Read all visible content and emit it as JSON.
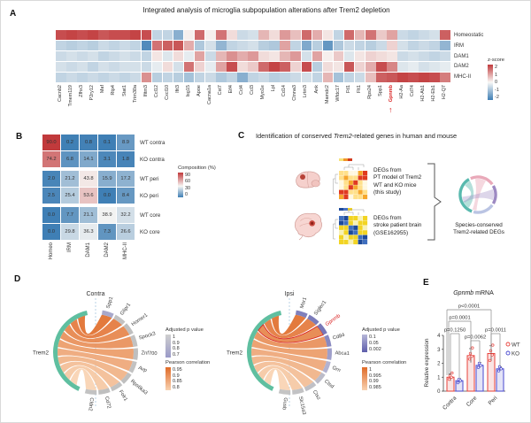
{
  "panels": {
    "A": {
      "letter": "A",
      "title": "Integrated analysis of microglia subpopulation alterations after Trem2 depletion"
    },
    "B": {
      "letter": "B"
    },
    "C": {
      "letter": "C",
      "title_parts": [
        {
          "text": "Identification of conserved ",
          "italic": false
        },
        {
          "text": "Trem2",
          "italic": true
        },
        {
          "text": "-related genes in human and mouse",
          "italic": false
        }
      ],
      "box1_lines": [
        "DEGs from",
        "PT model of Trem2",
        "WT and KO mice",
        "(this study)"
      ],
      "box2_lines": [
        "DEGs from",
        "stroke patient brain",
        "(GSE162955)"
      ],
      "result_lines": [
        "Species-conserved",
        "Trem2-related DEGs"
      ],
      "icons": [
        "mouse-brain-icon",
        "human-brain-icon",
        "clustered-heatmap-icon",
        "chord-diagram-icon"
      ]
    },
    "D": {
      "letter": "D"
    },
    "E": {
      "letter": "E"
    }
  },
  "colors": {
    "heatmap_high": "#c13a3c",
    "heatmap_low": "#3f7fb5",
    "trem2_arc_green": "#5fbfa0",
    "highlight_red": "#d92020",
    "wt_red": "#e8403a",
    "ko_blue": "#4747cf"
  },
  "chart_data": [
    {
      "id": "A",
      "type": "heatmap",
      "title": "Integrated analysis of microglia subpopulation alterations after Trem2 depletion",
      "rows": [
        "Homeostatic",
        "IRM",
        "DAM1",
        "DAM2",
        "MHC-II"
      ],
      "columns": [
        "Cacnb2",
        "Tmem119",
        "Zfhx3",
        "P2ry12",
        "Maf",
        "Rtp4",
        "Stat1",
        "Trim30a",
        "Ifitm3",
        "Ccl12",
        "Cxcl10",
        "Ifit3",
        "Isg15",
        "Apoe",
        "Cacna1a",
        "Cst7",
        "Eif4",
        "Ccl4",
        "Ccl3",
        "Myo1e",
        "Lpl",
        "Cd14",
        "Ctnna3",
        "Lrtm3",
        "Ank",
        "Mamdc2",
        "Wfdc17",
        "Ftl1",
        "Flt1",
        "Rps24",
        "Spp1",
        "Gpnmb",
        "H2-Aa",
        "Cd74",
        "H2-Ab1",
        "H2-Eb1",
        "H2-Q7"
      ],
      "highlight_column": "Gpnmb",
      "zscores": [
        [
          1.8,
          1.9,
          1.8,
          1.9,
          1.7,
          1.8,
          1.8,
          1.9,
          1.8,
          -0.6,
          -0.6,
          -1.2,
          0.1,
          1.5,
          0.1,
          1.4,
          0.3,
          -0.5,
          -0.4,
          0.7,
          0.3,
          1.0,
          0.6,
          1.5,
          0.8,
          0.2,
          -0.6,
          1.5,
          0.7,
          1.4,
          0.5,
          0.9,
          -0.5,
          -0.6,
          -0.5,
          -0.4,
          1.6
        ],
        [
          -0.6,
          -0.7,
          -0.6,
          -0.7,
          -0.5,
          -0.6,
          -0.5,
          -0.6,
          -1.8,
          1.4,
          1.6,
          1.7,
          0.8,
          -0.8,
          -0.4,
          -1.1,
          -0.6,
          -0.5,
          -0.4,
          -0.7,
          -0.8,
          0.9,
          -0.6,
          -1.3,
          -0.7,
          -1.6,
          -0.8,
          -0.5,
          -0.6,
          -0.7,
          -0.5,
          0.4,
          -0.4,
          -0.6,
          -0.5,
          -0.6,
          -1.1
        ],
        [
          -0.5,
          -0.4,
          -0.5,
          -0.4,
          -0.6,
          -0.5,
          -0.4,
          -0.5,
          -0.6,
          0.2,
          -0.3,
          0.3,
          -0.2,
          0.9,
          -0.5,
          0.7,
          1.1,
          0.8,
          1.0,
          0.3,
          0.2,
          0.7,
          1.0,
          -0.4,
          0.9,
          0.1,
          0.5,
          -0.3,
          0.2,
          0.4,
          0.3,
          0.2,
          -0.5,
          -0.4,
          -0.5,
          -0.6,
          -0.5
        ],
        [
          -0.4,
          -0.5,
          -0.4,
          -0.6,
          -0.4,
          -0.5,
          -0.4,
          -0.4,
          -0.5,
          -0.2,
          0.3,
          -0.4,
          1.4,
          0.4,
          -0.2,
          0.9,
          1.8,
          0.3,
          0.5,
          1.5,
          1.9,
          1.6,
          0.4,
          1.8,
          -0.7,
          0.3,
          0.2,
          1.7,
          0.4,
          0.8,
          1.8,
          1.2,
          -0.3,
          -0.2,
          -0.4,
          -0.3,
          -0.2
        ],
        [
          -0.6,
          -0.5,
          -0.6,
          -0.5,
          -0.6,
          -0.5,
          -0.6,
          -0.5,
          1.1,
          -0.7,
          -0.6,
          -0.7,
          -0.9,
          -0.6,
          -0.5,
          -0.8,
          -0.6,
          -1.2,
          -0.6,
          -0.5,
          -0.7,
          -0.6,
          -0.5,
          -0.4,
          -0.6,
          0.7,
          -0.9,
          -0.6,
          -0.5,
          0.6,
          1.6,
          1.7,
          1.9,
          1.8,
          1.9,
          1.8,
          1.3
        ]
      ],
      "legend": {
        "title": "z-score",
        "ticks": [
          "2",
          "1",
          "0",
          "-1",
          "-2"
        ]
      }
    },
    {
      "id": "B",
      "type": "heatmap",
      "rows": [
        "WT contra",
        "KO contra",
        "WT peri",
        "KO peri",
        "WT core",
        "KO core"
      ],
      "columns": [
        "Homeo",
        "IRM",
        "DAM1",
        "DAM2",
        "MHC-II"
      ],
      "values": [
        [
          90.0,
          0.2,
          0.8,
          0.1,
          8.9
        ],
        [
          74.2,
          6.8,
          14.1,
          3.1,
          1.8
        ],
        [
          2.0,
          21.2,
          43.8,
          15.9,
          17.2
        ],
        [
          2.5,
          25.4,
          53.6,
          0.0,
          8.4
        ],
        [
          0.0,
          7.7,
          21.1,
          38.9,
          32.2
        ],
        [
          0.0,
          29.8,
          36.3,
          7.3,
          26.6
        ]
      ],
      "legend": {
        "title": "Composition (%)",
        "ticks": [
          "90",
          "60",
          "30",
          "0"
        ]
      }
    },
    {
      "id": "D_contra",
      "type": "chord",
      "title": "Contra",
      "focus": "Trem2",
      "genes": [
        "Spp1",
        "Glipr1",
        "Homer1",
        "Spock3",
        "Znf700",
        "Avp",
        "Rps6ka3",
        "Folr1",
        "Cd72",
        "Cldn2"
      ],
      "arc_colors": [
        "#a8a8cb",
        "#c2c2c2",
        "#bfbfbf",
        "#c2c2c2",
        "#bfbfbf",
        "#c2c2c2",
        "#bfbfbf",
        "#c2c2c2",
        "#bfbfbf",
        "#c2c2c2"
      ],
      "chord_color_range": [
        "#e06b28",
        "#f8d2b0"
      ],
      "adjusted_p_legend": {
        "title": "Adjusted p value",
        "ticks": [
          "1",
          "0.9",
          "0.8",
          "0.7"
        ],
        "colors": [
          "#cfcfcf",
          "#9a9ac8"
        ]
      },
      "pearson_legend": {
        "title": "Pearson correlation",
        "ticks": [
          "0.95",
          "0.9",
          "0.85",
          "0.8"
        ],
        "colors": [
          "#e06b28",
          "#f8d2b0"
        ]
      }
    },
    {
      "id": "D_ipsi",
      "type": "chord",
      "title": "Ipsi",
      "focus": "Trem2",
      "genes": [
        "Msr1",
        "Siglec1",
        "Gpnmb",
        "Cd84",
        "Abca1",
        "Grn",
        "Ctsd",
        "Ctsz",
        "Slc15a3",
        "Gusb"
      ],
      "highlight_gene": "Gpnmb",
      "arc_colors": [
        "#8080bc",
        "#7b7bb9",
        "#7878b8",
        "#8989c0",
        "#9f9fca",
        "#b2b2d0",
        "#bcbcc9",
        "#c0c0c6",
        "#c2c2c4",
        "#c4c4c4"
      ],
      "chord_color_range": [
        "#e06b28",
        "#f8d2b0"
      ],
      "adjusted_p_legend": {
        "title": "Adjusted p value",
        "ticks": [
          "0.1",
          "0.05",
          "0.002"
        ],
        "colors": [
          "#b7b7d8",
          "#5d5dab"
        ]
      },
      "pearson_legend": {
        "title": "Pearson correlation",
        "ticks": [
          "1",
          "0.995",
          "0.99",
          "0.985"
        ],
        "colors": [
          "#e06b28",
          "#f8d2b0"
        ]
      }
    },
    {
      "id": "E",
      "type": "bar",
      "title_parts": [
        {
          "text": "Gpnmb",
          "italic": true
        },
        {
          "text": " mRNA",
          "italic": false
        }
      ],
      "ylabel": "Relative expression",
      "ylim": [
        0,
        4
      ],
      "yticks": [
        "0",
        "1",
        "2",
        "3",
        "4"
      ],
      "categories": [
        "Contra",
        "Core",
        "Peri"
      ],
      "series": [
        {
          "name": "WT",
          "color": "#e8403a",
          "fill": "#fae4e3",
          "values": [
            1.0,
            2.55,
            2.7
          ],
          "errors": [
            0.25,
            0.5,
            0.55
          ],
          "points": [
            [
              0.85,
              1.0,
              1.1,
              1.3
            ],
            [
              2.3,
              2.5,
              2.7,
              3.1
            ],
            [
              2.2,
              2.6,
              2.9,
              3.3
            ]
          ]
        },
        {
          "name": "KO",
          "color": "#4747cf",
          "fill": "#e4e4f7",
          "values": [
            0.75,
            1.85,
            1.6
          ],
          "errors": [
            0.15,
            0.2,
            0.15
          ],
          "points": [
            [
              0.6,
              0.75,
              0.85
            ],
            [
              1.7,
              1.85,
              2.0
            ],
            [
              1.45,
              1.6,
              1.75
            ]
          ]
        }
      ],
      "brackets": [
        {
          "label": "p<0.0001",
          "a": [
            0,
            0
          ],
          "b": [
            2,
            0
          ]
        },
        {
          "label": "p=0.0001",
          "a": [
            0,
            0
          ],
          "b": [
            1,
            0
          ]
        },
        {
          "label": "p=0.1250",
          "a": [
            0,
            0
          ],
          "b": [
            0,
            1
          ]
        },
        {
          "label": "p=0.0062",
          "a": [
            1,
            0
          ],
          "b": [
            1,
            1
          ]
        },
        {
          "label": "p=0.0011",
          "a": [
            2,
            0
          ],
          "b": [
            2,
            1
          ]
        }
      ]
    }
  ]
}
